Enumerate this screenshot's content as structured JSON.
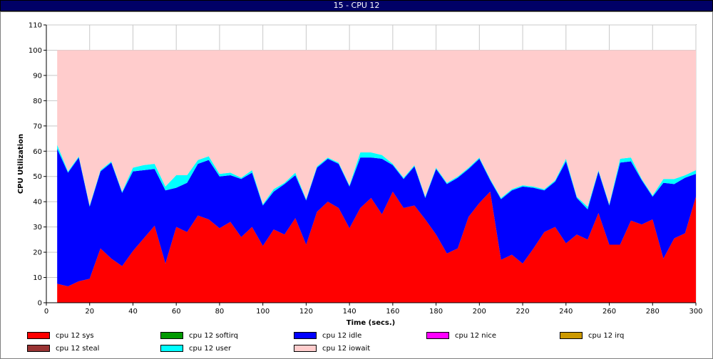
{
  "window": {
    "title": "15 - CPU 12"
  },
  "chart_data": {
    "type": "area",
    "stacked": true,
    "title": "",
    "xlabel": "Time (secs.)",
    "ylabel": "CPU Utilization",
    "xlim": [
      0,
      300
    ],
    "ylim": [
      0,
      110
    ],
    "xticks": [
      0,
      20,
      40,
      60,
      80,
      100,
      120,
      140,
      160,
      180,
      200,
      220,
      240,
      260,
      280,
      300
    ],
    "yticks": [
      0,
      10,
      20,
      30,
      40,
      50,
      60,
      70,
      80,
      90,
      100,
      110
    ],
    "grid": true,
    "legend_position": "bottom",
    "x": [
      5,
      10,
      15,
      20,
      25,
      30,
      35,
      40,
      45,
      50,
      55,
      60,
      65,
      70,
      75,
      80,
      85,
      90,
      95,
      100,
      105,
      110,
      115,
      120,
      125,
      130,
      135,
      140,
      145,
      150,
      155,
      160,
      165,
      170,
      175,
      180,
      185,
      190,
      195,
      200,
      205,
      210,
      215,
      220,
      225,
      230,
      235,
      240,
      245,
      250,
      255,
      260,
      265,
      270,
      275,
      280,
      285,
      290,
      295,
      300
    ],
    "series": [
      {
        "name": "cpu 12 sys",
        "color": "#ff0000",
        "values": [
          7.5,
          6.5,
          8.5,
          9.5,
          21.5,
          17.5,
          14.5,
          20.5,
          25.5,
          30.5,
          15.5,
          30,
          28,
          34.5,
          33,
          29.5,
          32,
          26,
          30,
          22.5,
          29,
          27,
          33.5,
          23,
          36,
          40,
          37.5,
          29.5,
          37.5,
          41.5,
          35,
          44,
          37.5,
          38.5,
          33,
          27,
          19.5,
          21.5,
          34,
          39.5,
          44,
          17,
          19,
          15.5,
          21.5,
          28,
          30,
          23.5,
          27,
          25,
          35.5,
          23,
          23,
          32.5,
          31,
          33,
          17.5,
          25.5,
          27.5,
          42
        ]
      },
      {
        "name": "cpu 12 softirq",
        "color": "#009900",
        "values": [
          0,
          0,
          0,
          0,
          0,
          0,
          0,
          0,
          0,
          0,
          0,
          0,
          0,
          0,
          0,
          0,
          0,
          0,
          0,
          0,
          0,
          0,
          0,
          0,
          0,
          0,
          0,
          0,
          0,
          0,
          0,
          0,
          0,
          0,
          0,
          0,
          0,
          0,
          0,
          0,
          0,
          0,
          0,
          0,
          0,
          0,
          0,
          0,
          0,
          0,
          0,
          0,
          0,
          0,
          0,
          0,
          0,
          0,
          0,
          0
        ]
      },
      {
        "name": "cpu 12 idle",
        "color": "#0000ff",
        "values": [
          53.5,
          45,
          49,
          28.5,
          30.5,
          38,
          29,
          31.5,
          27,
          22.5,
          29,
          15.5,
          19.5,
          20.5,
          23.5,
          20.5,
          18.5,
          23,
          21.5,
          16,
          15,
          20,
          17,
          17.5,
          17.5,
          17,
          17.5,
          16.5,
          20,
          16,
          22,
          10.5,
          11.5,
          15.5,
          8.5,
          26,
          27.5,
          28,
          19,
          17.5,
          4.5,
          24,
          25.5,
          30.5,
          24,
          16.5,
          18,
          32.5,
          14.5,
          12,
          16.5,
          15.5,
          32.5,
          23.5,
          17.5,
          9,
          30,
          21.5,
          22,
          9
        ]
      },
      {
        "name": "cpu 12 nice",
        "color": "#ff00ff",
        "values": [
          0,
          0,
          0,
          0,
          0,
          0,
          0,
          0,
          0,
          0,
          0,
          0,
          0,
          0,
          0,
          0,
          0,
          0,
          0,
          0,
          0,
          0,
          0,
          0,
          0,
          0,
          0,
          0,
          0,
          0,
          0,
          0,
          0,
          0,
          0,
          0,
          0,
          0,
          0,
          0,
          0,
          0,
          0,
          0,
          0,
          0,
          0,
          0,
          0,
          0,
          0,
          0,
          0,
          0,
          0,
          0,
          0,
          0,
          0,
          0
        ]
      },
      {
        "name": "cpu 12 irq",
        "color": "#cc9900",
        "values": [
          0,
          0,
          0,
          0,
          0,
          0,
          0,
          0,
          0,
          0,
          0,
          0,
          0,
          0,
          0,
          0,
          0,
          0,
          0,
          0,
          0,
          0,
          0,
          0,
          0,
          0,
          0,
          0,
          0,
          0,
          0,
          0,
          0,
          0,
          0,
          0,
          0,
          0,
          0,
          0,
          0,
          0,
          0,
          0,
          0,
          0,
          0,
          0,
          0,
          0,
          0,
          0,
          0,
          0,
          0,
          0,
          0,
          0,
          0,
          0
        ]
      },
      {
        "name": "cpu 12 steal",
        "color": "#993333",
        "values": [
          0,
          0,
          0,
          0,
          0,
          0,
          0,
          0,
          0,
          0,
          0,
          0,
          0,
          0,
          0,
          0,
          0,
          0,
          0,
          0,
          0,
          0,
          0,
          0,
          0,
          0,
          0,
          0,
          0,
          0,
          0,
          0,
          0,
          0,
          0,
          0,
          0,
          0,
          0,
          0,
          0,
          0,
          0,
          0,
          0,
          0,
          0,
          0,
          0,
          0,
          0,
          0,
          0,
          0,
          0,
          0,
          0,
          0,
          0,
          0
        ]
      },
      {
        "name": "cpu 12 user",
        "color": "#00ffff",
        "values": [
          1.5,
          0.5,
          0.5,
          0.5,
          0.5,
          0.5,
          0.5,
          1.5,
          2,
          2,
          1.5,
          5,
          3,
          1.5,
          1.5,
          1,
          1,
          0.5,
          1,
          0.5,
          1,
          0.5,
          1,
          0.5,
          0.5,
          0.5,
          0.5,
          0.5,
          2,
          2,
          1.5,
          0.5,
          0.5,
          0.5,
          0.5,
          0.5,
          0.5,
          0.5,
          0.5,
          0.5,
          0.5,
          0.5,
          0.5,
          0.5,
          0.5,
          0.5,
          0.5,
          1,
          0.5,
          1,
          0.5,
          0.5,
          1.5,
          1.5,
          0.5,
          0.5,
          1.5,
          2,
          1,
          1.5
        ]
      },
      {
        "name": "cpu 12 iowait",
        "color": "#ffcccc",
        "values": [
          37.5,
          48,
          42,
          61.5,
          47.5,
          44,
          56,
          46.5,
          45.5,
          45,
          54,
          49.5,
          49.5,
          43.5,
          42,
          49,
          48.5,
          50.5,
          47.5,
          61,
          55,
          52.5,
          48.5,
          59,
          46,
          42.5,
          44.5,
          53.5,
          40.5,
          40.5,
          41.5,
          45,
          50.5,
          45.5,
          58,
          46.5,
          52.5,
          50,
          46.5,
          42.5,
          51,
          58.5,
          55,
          53.5,
          54,
          55,
          51.5,
          43,
          58,
          62,
          47.5,
          61,
          43,
          42.5,
          51,
          57.5,
          51,
          51,
          49.5,
          47.5
        ]
      }
    ]
  }
}
